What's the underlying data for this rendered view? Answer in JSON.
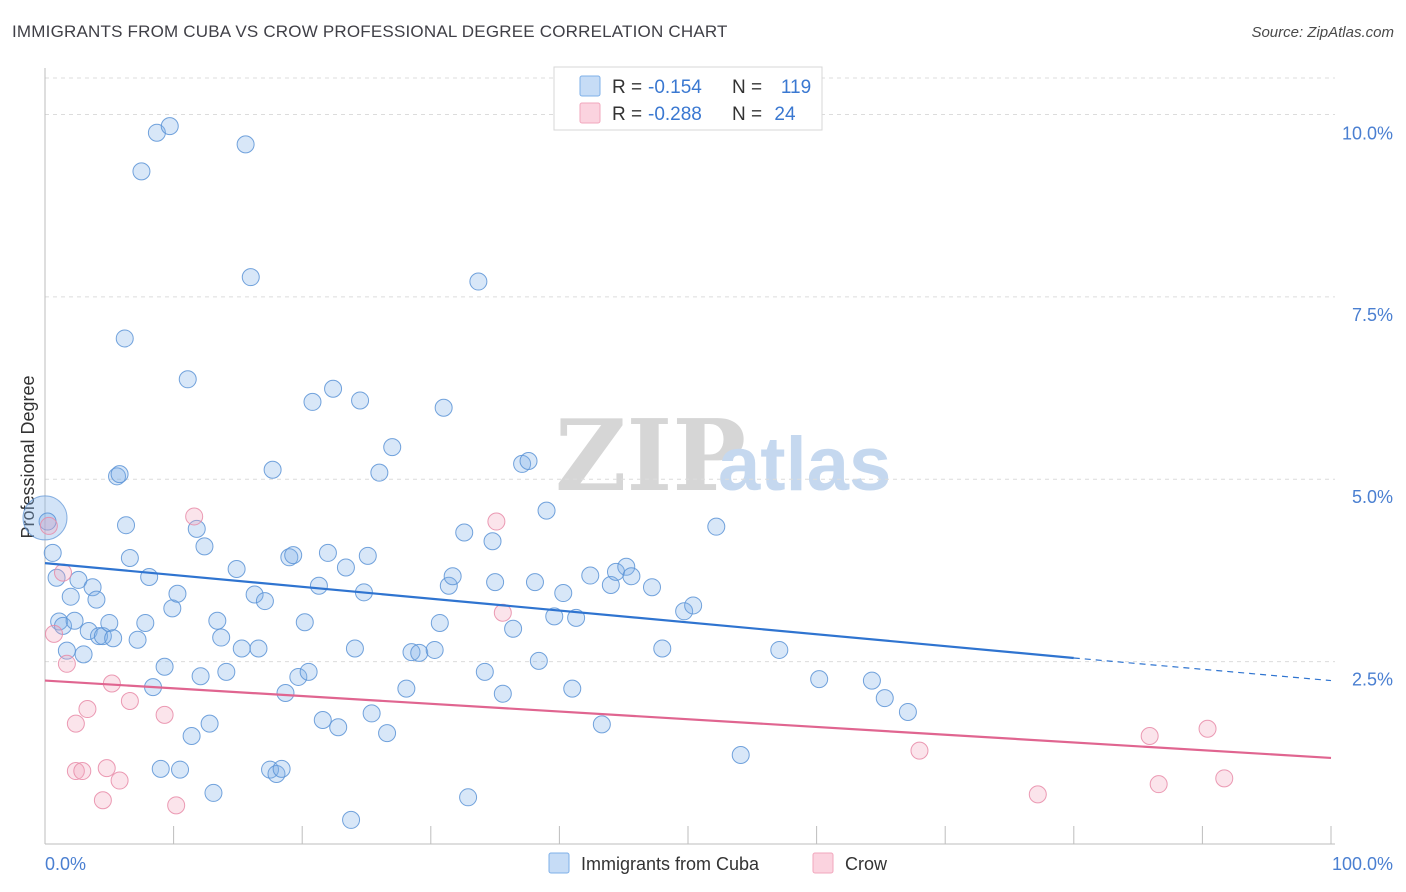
{
  "chart_data": {
    "type": "scatter",
    "title": "IMMIGRANTS FROM CUBA VS CROW PROFESSIONAL DEGREE CORRELATION CHART",
    "source": "Source: ZipAtlas.com",
    "ylabel": "Professional Degree",
    "xlim": [
      0,
      100
    ],
    "ylim": [
      0,
      10.5
    ],
    "x_tick_labels": [
      "0.0%",
      "100.0%"
    ],
    "y_ticks": [
      {
        "value": 10.0,
        "label": "10.0%"
      },
      {
        "value": 7.5,
        "label": "7.5%"
      },
      {
        "value": 5.0,
        "label": "5.0%"
      },
      {
        "value": 2.5,
        "label": "2.5%"
      }
    ],
    "grid": "horizontal dashed",
    "legend_position": "top-center",
    "watermark": {
      "a": "ZIP",
      "b": "atlas"
    },
    "stats": [
      {
        "r_label": "R =",
        "r": "-0.154",
        "n_label": "N =",
        "n": "119",
        "color": "#7fb0e8"
      },
      {
        "r_label": "R =",
        "r": "-0.288",
        "n_label": "N =",
        "n": "24",
        "color": "#f2a7bd"
      }
    ],
    "series": [
      {
        "name": "Immigrants from Cuba",
        "color": "#7fb0e8",
        "stroke": "#5b93d6",
        "trend": {
          "x": [
            0,
            80
          ],
          "y": [
            3.85,
            2.55
          ],
          "dash_to": [
            100,
            2.24
          ],
          "color": "#2f74d0"
        },
        "points": [
          [
            0.2,
            4.42
          ],
          [
            0.6,
            3.99
          ],
          [
            0.9,
            3.65
          ],
          [
            1.1,
            3.05
          ],
          [
            1.4,
            2.99
          ],
          [
            1.7,
            2.65
          ],
          [
            2.0,
            3.39
          ],
          [
            2.3,
            3.06
          ],
          [
            2.6,
            3.62
          ],
          [
            3.0,
            2.6
          ],
          [
            3.4,
            2.92
          ],
          [
            3.7,
            3.52
          ],
          [
            4.0,
            3.35
          ],
          [
            4.2,
            2.85
          ],
          [
            4.5,
            2.85
          ],
          [
            5.0,
            3.03
          ],
          [
            5.3,
            2.82
          ],
          [
            5.6,
            5.04
          ],
          [
            5.8,
            5.07
          ],
          [
            6.3,
            4.37
          ],
          [
            6.6,
            3.92
          ],
          [
            6.2,
            6.93
          ],
          [
            7.2,
            2.8
          ],
          [
            7.5,
            9.22
          ],
          [
            7.8,
            3.03
          ],
          [
            8.1,
            3.66
          ],
          [
            8.4,
            2.15
          ],
          [
            8.7,
            9.75
          ],
          [
            9.0,
            1.03
          ],
          [
            9.3,
            2.43
          ],
          [
            9.7,
            9.84
          ],
          [
            9.9,
            3.23
          ],
          [
            10.3,
            3.43
          ],
          [
            10.5,
            1.02
          ],
          [
            11.1,
            6.37
          ],
          [
            11.4,
            1.48
          ],
          [
            11.8,
            4.32
          ],
          [
            12.1,
            2.3
          ],
          [
            12.4,
            4.08
          ],
          [
            12.8,
            1.65
          ],
          [
            13.1,
            0.7
          ],
          [
            13.4,
            3.06
          ],
          [
            13.7,
            2.83
          ],
          [
            14.1,
            2.36
          ],
          [
            14.9,
            3.77
          ],
          [
            15.3,
            2.68
          ],
          [
            15.6,
            9.59
          ],
          [
            16.0,
            7.77
          ],
          [
            16.3,
            3.42
          ],
          [
            16.6,
            2.68
          ],
          [
            17.1,
            3.33
          ],
          [
            17.5,
            1.02
          ],
          [
            17.7,
            5.13
          ],
          [
            18.0,
            0.96
          ],
          [
            18.4,
            1.03
          ],
          [
            18.7,
            2.07
          ],
          [
            19.0,
            3.93
          ],
          [
            19.3,
            3.96
          ],
          [
            19.7,
            2.29
          ],
          [
            20.2,
            3.04
          ],
          [
            20.5,
            2.36
          ],
          [
            20.8,
            6.06
          ],
          [
            21.3,
            3.54
          ],
          [
            21.6,
            1.7
          ],
          [
            22.0,
            3.99
          ],
          [
            22.4,
            6.24
          ],
          [
            22.8,
            1.6
          ],
          [
            23.4,
            3.79
          ],
          [
            23.8,
            0.33
          ],
          [
            24.1,
            2.68
          ],
          [
            24.5,
            6.08
          ],
          [
            24.8,
            3.45
          ],
          [
            25.1,
            3.95
          ],
          [
            25.4,
            1.79
          ],
          [
            26.0,
            5.09
          ],
          [
            26.6,
            1.52
          ],
          [
            27.0,
            5.44
          ],
          [
            28.1,
            2.13
          ],
          [
            28.5,
            2.63
          ],
          [
            29.1,
            2.62
          ],
          [
            30.3,
            2.66
          ],
          [
            30.7,
            3.03
          ],
          [
            31.0,
            5.98
          ],
          [
            31.4,
            3.54
          ],
          [
            31.7,
            3.67
          ],
          [
            32.6,
            4.27
          ],
          [
            32.9,
            0.64
          ],
          [
            33.7,
            7.71
          ],
          [
            34.2,
            2.36
          ],
          [
            34.8,
            4.15
          ],
          [
            35.0,
            3.59
          ],
          [
            35.6,
            2.06
          ],
          [
            36.4,
            2.95
          ],
          [
            37.1,
            5.21
          ],
          [
            37.6,
            5.25
          ],
          [
            38.1,
            3.59
          ],
          [
            38.4,
            2.51
          ],
          [
            39.0,
            4.57
          ],
          [
            39.6,
            3.12
          ],
          [
            40.3,
            3.44
          ],
          [
            41.0,
            2.13
          ],
          [
            41.3,
            3.1
          ],
          [
            42.4,
            3.68
          ],
          [
            43.3,
            1.64
          ],
          [
            44.0,
            3.55
          ],
          [
            44.4,
            3.73
          ],
          [
            45.2,
            3.8
          ],
          [
            45.6,
            3.67
          ],
          [
            47.2,
            3.52
          ],
          [
            48.0,
            2.68
          ],
          [
            49.7,
            3.19
          ],
          [
            50.4,
            3.27
          ],
          [
            52.2,
            4.35
          ],
          [
            54.1,
            1.22
          ],
          [
            57.1,
            2.66
          ],
          [
            60.2,
            2.26
          ],
          [
            64.3,
            2.24
          ],
          [
            65.3,
            2.0
          ],
          [
            67.1,
            1.81
          ]
        ],
        "big_point": [
          0.0,
          4.47
        ]
      },
      {
        "name": "Crow",
        "color": "#f2a7bd",
        "stroke": "#e78aa7",
        "trend": {
          "x": [
            0,
            100
          ],
          "y": [
            2.24,
            1.18
          ],
          "color": "#e06590"
        },
        "points": [
          [
            0.3,
            4.36
          ],
          [
            0.7,
            2.88
          ],
          [
            1.4,
            3.72
          ],
          [
            1.7,
            2.47
          ],
          [
            2.4,
            1.65
          ],
          [
            2.4,
            1.0
          ],
          [
            2.9,
            1.0
          ],
          [
            3.3,
            1.85
          ],
          [
            4.5,
            0.6
          ],
          [
            4.8,
            1.04
          ],
          [
            5.2,
            2.2
          ],
          [
            5.8,
            0.87
          ],
          [
            6.6,
            1.96
          ],
          [
            9.3,
            1.77
          ],
          [
            10.2,
            0.53
          ],
          [
            11.6,
            4.49
          ],
          [
            35.1,
            4.42
          ],
          [
            35.6,
            3.17
          ],
          [
            68.0,
            1.28
          ],
          [
            77.2,
            0.68
          ],
          [
            85.9,
            1.48
          ],
          [
            86.6,
            0.82
          ],
          [
            90.4,
            1.58
          ],
          [
            91.7,
            0.9
          ]
        ]
      }
    ]
  }
}
